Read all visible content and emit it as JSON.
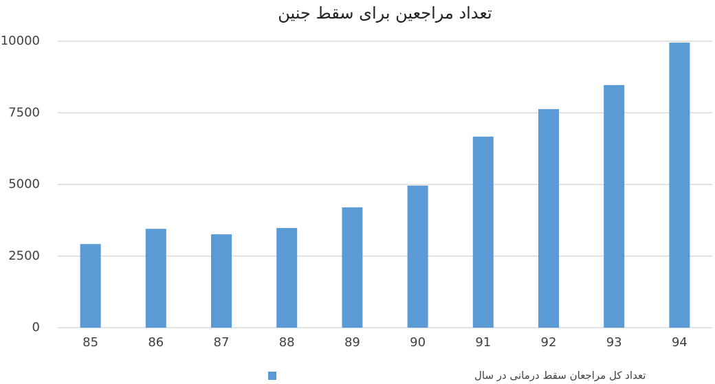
{
  "chart_data": {
    "type": "bar",
    "title": "تعداد مراجعین برای سقط جنین",
    "categories": [
      "85",
      "86",
      "87",
      "88",
      "89",
      "90",
      "91",
      "92",
      "93",
      "94"
    ],
    "series": [
      {
        "name": "تعداد کل مراجعان سقط درمانی در سال",
        "color": "#5b9bd5",
        "values": [
          2920,
          3450,
          3260,
          3480,
          4200,
          4960,
          6670,
          7630,
          8470,
          9950
        ]
      }
    ],
    "ylim": [
      0,
      10000
    ],
    "yticks": [
      0,
      2500,
      5000,
      7500,
      10000
    ],
    "grid": true,
    "legend": "bottom"
  }
}
